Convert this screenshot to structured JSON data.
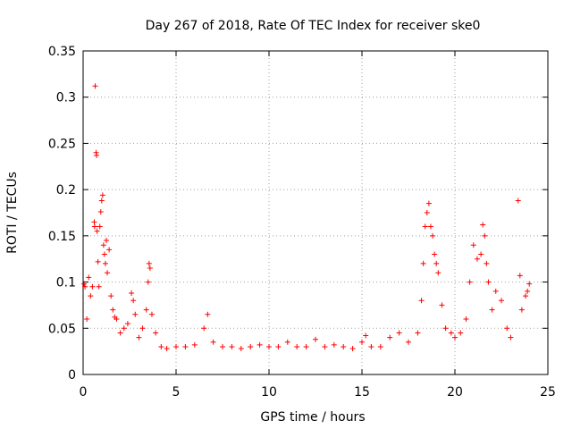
{
  "chart_data": {
    "type": "scatter",
    "title": "Day 267 of 2018, Rate Of TEC Index for receiver ske0",
    "xlabel": "GPS time / hours",
    "ylabel": "ROTI / TECUs",
    "xlim": [
      0,
      25
    ],
    "ylim": [
      0,
      0.35
    ],
    "xticks": [
      0,
      5,
      10,
      15,
      20,
      25
    ],
    "yticks": [
      0,
      0.05,
      0.1,
      0.15,
      0.2,
      0.25,
      0.3,
      0.35
    ],
    "ytick_labels": [
      "0",
      "0.05",
      "0.1",
      "0.15",
      "0.2",
      "0.25",
      "0.3",
      "0.35"
    ],
    "grid": true,
    "marker": "+",
    "color": "#ff0000",
    "series": [
      {
        "points": [
          [
            0.05,
            0.098
          ],
          [
            0.1,
            0.095
          ],
          [
            0.2,
            0.06
          ],
          [
            0.3,
            0.105
          ],
          [
            0.4,
            0.085
          ],
          [
            0.5,
            0.095
          ],
          [
            0.6,
            0.165
          ],
          [
            0.62,
            0.16
          ],
          [
            0.65,
            0.312
          ],
          [
            0.7,
            0.24
          ],
          [
            0.72,
            0.237
          ],
          [
            0.75,
            0.155
          ],
          [
            0.8,
            0.122
          ],
          [
            0.85,
            0.095
          ],
          [
            0.9,
            0.16
          ],
          [
            0.95,
            0.176
          ],
          [
            1.0,
            0.188
          ],
          [
            1.05,
            0.194
          ],
          [
            1.1,
            0.14
          ],
          [
            1.15,
            0.13
          ],
          [
            1.2,
            0.12
          ],
          [
            1.25,
            0.145
          ],
          [
            1.3,
            0.11
          ],
          [
            1.4,
            0.135
          ],
          [
            1.5,
            0.085
          ],
          [
            1.6,
            0.07
          ],
          [
            1.7,
            0.062
          ],
          [
            1.8,
            0.06
          ],
          [
            2.0,
            0.045
          ],
          [
            2.2,
            0.05
          ],
          [
            2.4,
            0.055
          ],
          [
            2.6,
            0.088
          ],
          [
            2.7,
            0.08
          ],
          [
            2.8,
            0.065
          ],
          [
            3.0,
            0.04
          ],
          [
            3.2,
            0.05
          ],
          [
            3.4,
            0.07
          ],
          [
            3.5,
            0.1
          ],
          [
            3.55,
            0.12
          ],
          [
            3.6,
            0.115
          ],
          [
            3.7,
            0.065
          ],
          [
            3.9,
            0.045
          ],
          [
            4.2,
            0.03
          ],
          [
            4.5,
            0.028
          ],
          [
            5.0,
            0.03
          ],
          [
            5.5,
            0.03
          ],
          [
            6.0,
            0.032
          ],
          [
            6.5,
            0.05
          ],
          [
            6.7,
            0.065
          ],
          [
            7.0,
            0.035
          ],
          [
            7.5,
            0.03
          ],
          [
            8.0,
            0.03
          ],
          [
            8.5,
            0.028
          ],
          [
            9.0,
            0.03
          ],
          [
            9.5,
            0.032
          ],
          [
            10.0,
            0.03
          ],
          [
            10.5,
            0.03
          ],
          [
            11.0,
            0.035
          ],
          [
            11.5,
            0.03
          ],
          [
            12.0,
            0.03
          ],
          [
            12.5,
            0.038
          ],
          [
            13.0,
            0.03
          ],
          [
            13.5,
            0.032
          ],
          [
            14.0,
            0.03
          ],
          [
            14.5,
            0.028
          ],
          [
            15.0,
            0.035
          ],
          [
            15.2,
            0.042
          ],
          [
            15.5,
            0.03
          ],
          [
            16.0,
            0.03
          ],
          [
            16.5,
            0.04
          ],
          [
            17.0,
            0.045
          ],
          [
            17.5,
            0.035
          ],
          [
            18.0,
            0.045
          ],
          [
            18.2,
            0.08
          ],
          [
            18.3,
            0.12
          ],
          [
            18.4,
            0.16
          ],
          [
            18.5,
            0.175
          ],
          [
            18.6,
            0.185
          ],
          [
            18.7,
            0.16
          ],
          [
            18.8,
            0.15
          ],
          [
            18.9,
            0.13
          ],
          [
            19.0,
            0.12
          ],
          [
            19.1,
            0.11
          ],
          [
            19.3,
            0.075
          ],
          [
            19.5,
            0.05
          ],
          [
            19.8,
            0.045
          ],
          [
            20.0,
            0.04
          ],
          [
            20.3,
            0.045
          ],
          [
            20.6,
            0.06
          ],
          [
            20.8,
            0.1
          ],
          [
            21.0,
            0.14
          ],
          [
            21.2,
            0.125
          ],
          [
            21.4,
            0.13
          ],
          [
            21.5,
            0.162
          ],
          [
            21.6,
            0.15
          ],
          [
            21.7,
            0.12
          ],
          [
            21.8,
            0.1
          ],
          [
            22.0,
            0.07
          ],
          [
            22.2,
            0.09
          ],
          [
            22.5,
            0.08
          ],
          [
            22.8,
            0.05
          ],
          [
            23.0,
            0.04
          ],
          [
            23.4,
            0.188
          ],
          [
            23.5,
            0.107
          ],
          [
            23.6,
            0.07
          ],
          [
            23.8,
            0.085
          ],
          [
            23.9,
            0.09
          ],
          [
            24.0,
            0.098
          ]
        ]
      }
    ]
  }
}
